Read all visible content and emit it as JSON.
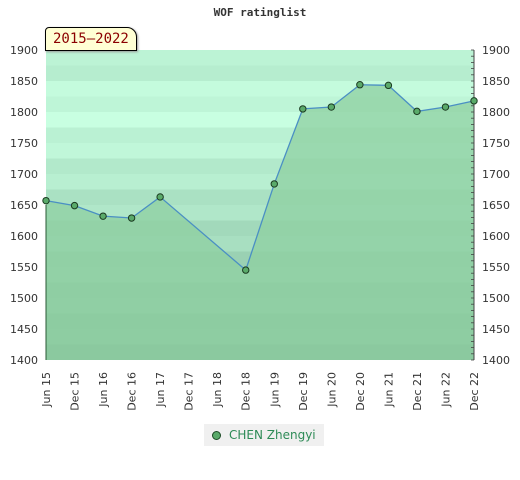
{
  "chart_data": {
    "type": "area",
    "title": "WOF ratinglist",
    "period": "2015–2022",
    "categories": [
      "Jun 15",
      "Dec 15",
      "Jun 16",
      "Dec 16",
      "Jun 17",
      "Dec 17",
      "Jun 18",
      "Dec 18",
      "Jun 19",
      "Dec 19",
      "Jun 20",
      "Dec 20",
      "Jun 21",
      "Dec 21",
      "Jun 22",
      "Dec 22"
    ],
    "series": [
      {
        "name": "CHEN Zhengyi",
        "values": [
          1657,
          1649,
          1632,
          1629,
          1663,
          null,
          null,
          1545,
          1684,
          1805,
          1808,
          1844,
          1843,
          1801,
          1808,
          1818
        ]
      }
    ],
    "ylim": [
      1400,
      1900
    ],
    "yticks": [
      1400,
      1450,
      1500,
      1550,
      1600,
      1650,
      1700,
      1750,
      1800,
      1850,
      1900
    ],
    "legend_position": "bottom-center",
    "colors": {
      "area": "#8ecfa0",
      "line": "#4a8fc4",
      "marker": "#5aaa6a",
      "band_dark": "#b5dec3",
      "band_light": "#f2f9f4"
    }
  }
}
